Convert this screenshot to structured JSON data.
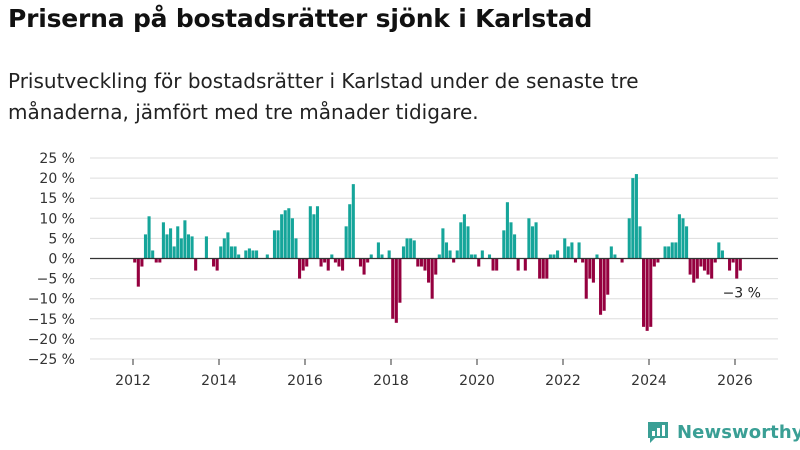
{
  "title": "Priserna på bostadsrätter sjönk i Karlstad",
  "subtitle": "Prisutveckling för bostadsrätter i Karlstad under de senaste tre månaderna, jämfört med tre månader tidigare.",
  "brand": {
    "name": "Newsworthy",
    "color": "#3a9f95"
  },
  "colors": {
    "positive": "#15a59a",
    "negative": "#95003f",
    "grid": "#dddddd",
    "zero": "#333333"
  },
  "chart_data": {
    "type": "bar",
    "title": "Priserna på bostadsrätter sjönk i Karlstad",
    "xlabel": "",
    "ylabel": "",
    "unit": "%",
    "ylim": [
      -25,
      25
    ],
    "yticks": [
      25,
      20,
      15,
      10,
      5,
      0,
      -5,
      -10,
      -15,
      -20,
      -25
    ],
    "ytick_labels": [
      "25 %",
      "20 %",
      "15 %",
      "10 %",
      "5 %",
      "0 %",
      "−5 %",
      "−10 %",
      "−15 %",
      "−20 %",
      "−25 %"
    ],
    "xlim": [
      2011.0,
      2027.0
    ],
    "xticks": [
      2012,
      2014,
      2016,
      2018,
      2020,
      2022,
      2024,
      2026
    ],
    "xtick_labels": [
      "2012",
      "2014",
      "2016",
      "2018",
      "2020",
      "2022",
      "2024",
      "2026"
    ],
    "start": "2012-01",
    "frequency": "monthly",
    "values": [
      -1,
      -7,
      -2,
      6,
      10.5,
      2,
      -1,
      -1,
      9,
      6,
      7.5,
      3,
      8,
      5,
      9.5,
      6,
      5.5,
      -3,
      0,
      0,
      5.5,
      0,
      -2,
      -3,
      3,
      5,
      6.5,
      3,
      3,
      1,
      0,
      2,
      2.5,
      2,
      2,
      0,
      0,
      1,
      0,
      7,
      7,
      11,
      12,
      12.5,
      10,
      5,
      -5,
      -3,
      -2,
      13,
      11,
      13,
      -2,
      -1,
      -3,
      1,
      -1,
      -2,
      -3,
      8,
      13.5,
      18.5,
      0,
      -2,
      -4,
      -1,
      1,
      0,
      4,
      1,
      0,
      2,
      -15,
      -16,
      -11,
      3,
      5,
      5,
      4.5,
      -2,
      -2,
      -3,
      -6,
      -10,
      -4,
      1,
      7.5,
      4,
      2,
      -1,
      2,
      9,
      11,
      8,
      1,
      1,
      -2,
      2,
      0,
      1,
      -3,
      -3,
      0,
      7,
      14,
      9,
      6,
      -3,
      0,
      -3,
      10,
      8,
      9,
      -5,
      -5,
      -5,
      1,
      1,
      2,
      0,
      5,
      3,
      4,
      -1,
      4,
      -1,
      -10,
      -5,
      -6,
      1,
      -14,
      -13,
      -9,
      3,
      1,
      0,
      -1,
      0,
      10,
      20,
      21,
      8,
      -17,
      -18,
      -17,
      -2,
      -1,
      0,
      3,
      3,
      4,
      4,
      11,
      10,
      8,
      -4,
      -6,
      -5,
      -2,
      -3,
      -4,
      -5,
      -1,
      4,
      2,
      0,
      -3,
      -1,
      -5,
      -3
    ],
    "annotations": [
      {
        "text": "−3 %",
        "index": 169
      }
    ]
  }
}
